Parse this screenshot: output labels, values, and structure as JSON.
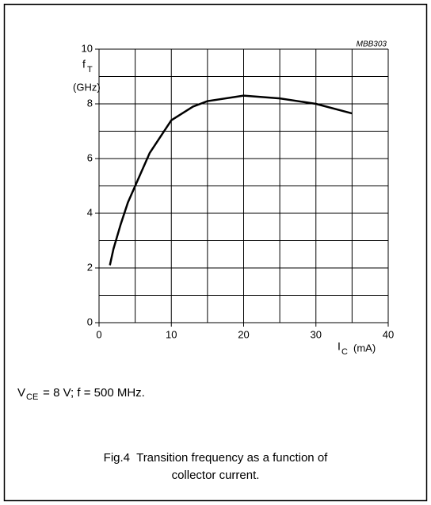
{
  "chart_data": {
    "type": "line",
    "figure_id": "MBB303",
    "y_label": {
      "symbol": "f",
      "sub": "T",
      "unit": "(GHz)"
    },
    "x_label": {
      "symbol": "I",
      "sub": "C",
      "unit": "(mA)"
    },
    "conditions": {
      "symbol": "V",
      "sub": "CE",
      "rest": " = 8 V; f = 500 MHz."
    },
    "caption": [
      "Fig.4  Transition frequency as a function of",
      "collector current."
    ],
    "xlim": [
      0,
      40
    ],
    "ylim": [
      0,
      10
    ],
    "xticks": [
      0,
      10,
      20,
      30,
      40
    ],
    "yticks": [
      0,
      2,
      4,
      6,
      8,
      10
    ],
    "x_minor_grid": [
      5,
      15,
      25,
      35
    ],
    "y_minor_grid": [
      1,
      3,
      5,
      7,
      9
    ],
    "grid": true,
    "color": "#000000",
    "series": [
      {
        "x": [
          1.5,
          2,
          3,
          4,
          5,
          7,
          10,
          13,
          15,
          20,
          25,
          30,
          35
        ],
        "values": [
          2.1,
          2.7,
          3.6,
          4.4,
          5.0,
          6.2,
          7.4,
          7.9,
          8.1,
          8.3,
          8.2,
          8.0,
          7.65
        ]
      }
    ]
  }
}
